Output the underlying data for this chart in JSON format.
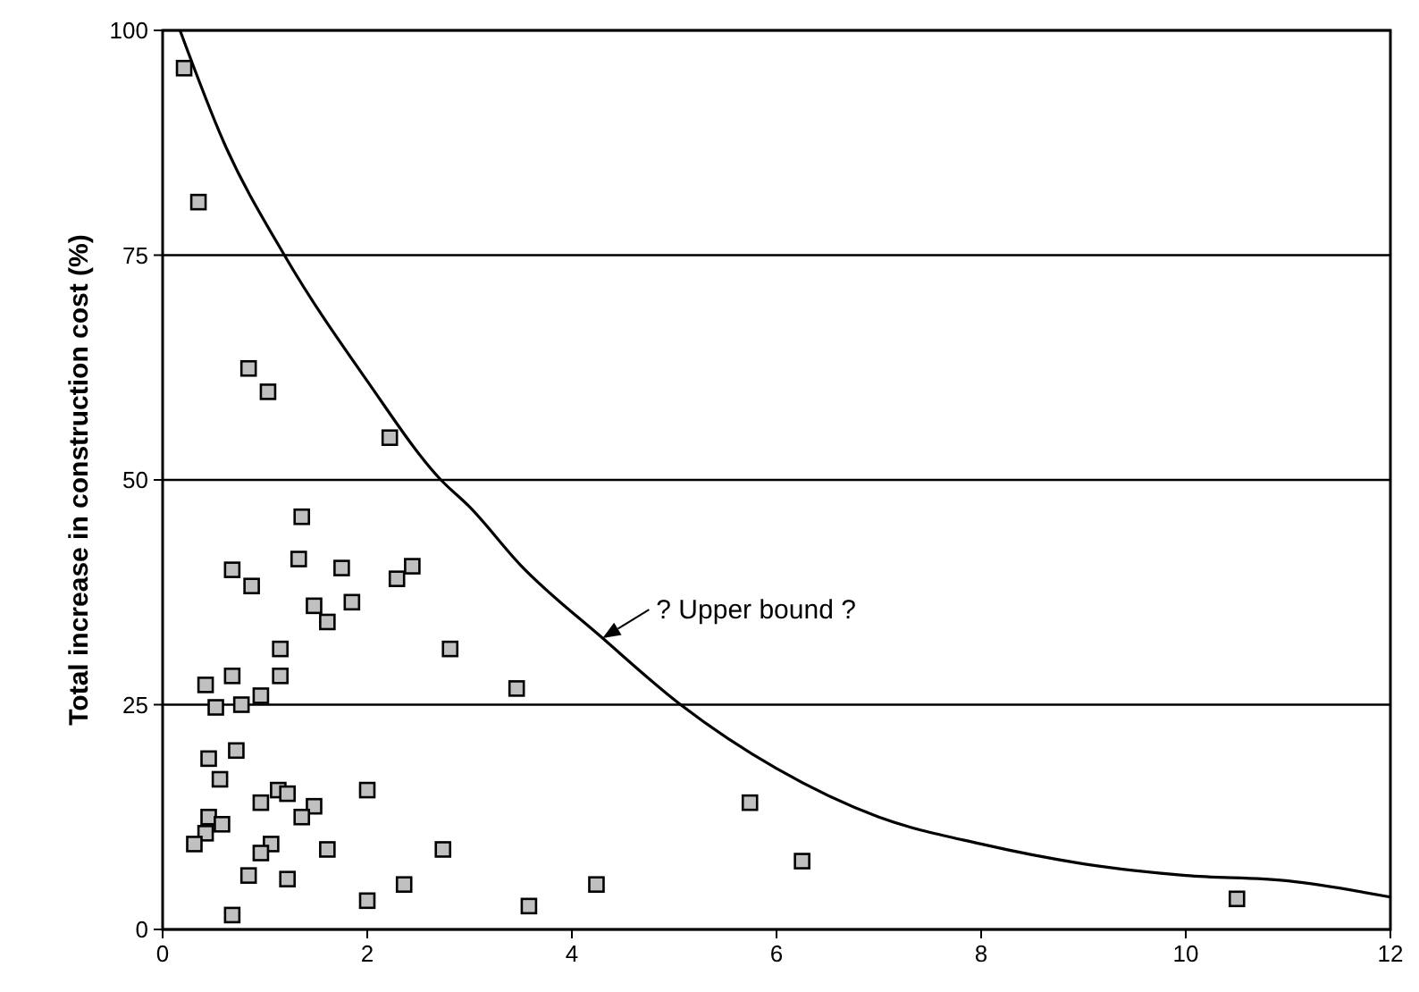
{
  "chart_data": {
    "type": "scatter",
    "ylabel": "Total increase in construction cost (%)",
    "xlim": [
      0,
      12
    ],
    "ylim": [
      0,
      100
    ],
    "xticks": [
      0,
      2,
      4,
      6,
      8,
      10,
      12
    ],
    "yticks": [
      0,
      25,
      50,
      75,
      100
    ],
    "grid": "y",
    "marker": "square",
    "series": [
      {
        "color": "#c0c0c0",
        "x": [
          0.21,
          0.35,
          0.84,
          1.03,
          2.22,
          1.36,
          0.68,
          0.87,
          1.33,
          1.75,
          2.44,
          2.29,
          1.48,
          1.61,
          1.85,
          1.15,
          2.81,
          0.42,
          0.68,
          1.15,
          0.96,
          0.52,
          0.77,
          3.46,
          0.45,
          0.72,
          0.56,
          2.0,
          0.96,
          1.13,
          1.22,
          1.48,
          1.36,
          0.45,
          0.42,
          0.58,
          0.31,
          1.06,
          0.96,
          1.61,
          2.74,
          0.84,
          1.22,
          2.0,
          2.36,
          0.68,
          3.58,
          4.24,
          5.74,
          6.25,
          10.5
        ],
        "values": [
          95.8,
          80.9,
          62.4,
          59.8,
          54.7,
          45.9,
          40,
          38.2,
          41.2,
          40.2,
          40.4,
          39,
          36,
          34.2,
          36.4,
          31.2,
          31.2,
          27.2,
          28.2,
          28.2,
          26,
          24.7,
          25,
          26.8,
          19,
          19.9,
          16.7,
          15.5,
          14.1,
          15.5,
          15.1,
          13.7,
          12.5,
          12.5,
          10.7,
          11.7,
          9.5,
          9.5,
          8.5,
          8.9,
          8.9,
          6,
          5.6,
          3.2,
          5,
          1.6,
          2.6,
          5,
          14.1,
          7.6,
          3.4
        ]
      },
      {
        "type": "line",
        "color": "#000000",
        "marker": "none",
        "x": [
          0.17,
          0.6,
          1.19,
          2,
          2.72,
          3,
          3.5,
          4.3,
          5.04,
          6,
          7,
          8,
          9,
          10,
          11,
          12
        ],
        "values": [
          100,
          87.5,
          75,
          61,
          50,
          47,
          40.5,
          32.4,
          25.2,
          17.9,
          12.5,
          9.5,
          7.3,
          6,
          5.4,
          3.6
        ]
      }
    ],
    "annotations": [
      {
        "text": "? Upper bound ?",
        "x": 4.3,
        "y": 32.4
      }
    ]
  }
}
